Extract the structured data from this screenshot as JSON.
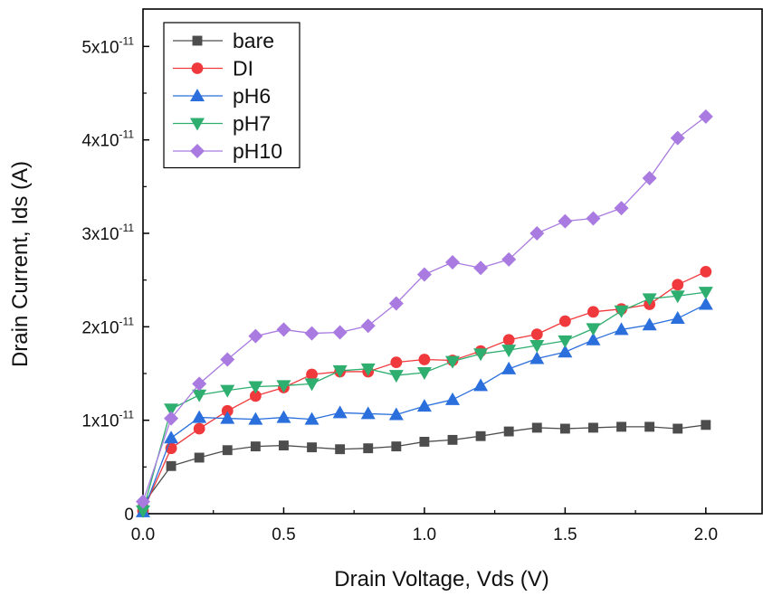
{
  "chart_data": {
    "type": "line",
    "xlabel": "Drain Voltage, Vds (V)",
    "ylabel": "Drain Current, Ids (A)",
    "xlim": [
      0,
      2.2
    ],
    "ylim": [
      0,
      5.4e-11
    ],
    "x_ticks": [
      0.0,
      0.5,
      1.0,
      1.5,
      2.0
    ],
    "x_tick_labels": [
      "0.0",
      "0.5",
      "1.0",
      "1.5",
      "2.0"
    ],
    "y_ticks": [
      0,
      1e-11,
      2e-11,
      3e-11,
      4e-11,
      5e-11
    ],
    "y_tick_labels": [
      {
        "mantissa": "0",
        "exponent": ""
      },
      {
        "mantissa": "1x10",
        "exponent": "-11"
      },
      {
        "mantissa": "2x10",
        "exponent": "-11"
      },
      {
        "mantissa": "3x10",
        "exponent": "-11"
      },
      {
        "mantissa": "4x10",
        "exponent": "-11"
      },
      {
        "mantissa": "5x10",
        "exponent": "-11"
      }
    ],
    "grid": false,
    "legend_position": "top-left",
    "x": [
      0.0,
      0.1,
      0.2,
      0.3,
      0.4,
      0.5,
      0.6,
      0.7,
      0.8,
      0.9,
      1.0,
      1.1,
      1.2,
      1.3,
      1.4,
      1.5,
      1.6,
      1.7,
      1.8,
      1.9,
      2.0
    ],
    "series": [
      {
        "name": "bare",
        "color": "#4d4d4d",
        "marker": "square",
        "values": [
          1e-12,
          5.1e-12,
          6e-12,
          6.8e-12,
          7.2e-12,
          7.3e-12,
          7.1e-12,
          6.9e-12,
          7e-12,
          7.2e-12,
          7.7e-12,
          7.9e-12,
          8.3e-12,
          8.8e-12,
          9.2e-12,
          9.1e-12,
          9.2e-12,
          9.3e-12,
          9.3e-12,
          9.1e-12,
          9.5e-12
        ]
      },
      {
        "name": "DI",
        "color": "#f0393c",
        "marker": "circle",
        "values": [
          3e-13,
          7e-12,
          9.1e-12,
          1.1e-11,
          1.26e-11,
          1.35e-11,
          1.49e-11,
          1.52e-11,
          1.52e-11,
          1.62e-11,
          1.65e-11,
          1.64e-11,
          1.74e-11,
          1.86e-11,
          1.92e-11,
          2.06e-11,
          2.16e-11,
          2.19e-11,
          2.24e-11,
          2.45e-11,
          2.59e-11
        ]
      },
      {
        "name": "pH6",
        "color": "#2a6fdc",
        "marker": "triangle-up",
        "values": [
          2e-13,
          8.1e-12,
          1.03e-11,
          1.02e-11,
          1.01e-11,
          1.03e-11,
          1.01e-11,
          1.08e-11,
          1.07e-11,
          1.06e-11,
          1.15e-11,
          1.22e-11,
          1.37e-11,
          1.55e-11,
          1.66e-11,
          1.73e-11,
          1.86e-11,
          1.97e-11,
          2.02e-11,
          2.09e-11,
          2.24e-11
        ]
      },
      {
        "name": "pH7",
        "color": "#2eae6f",
        "marker": "triangle-down",
        "values": [
          3e-13,
          1.12e-11,
          1.27e-11,
          1.32e-11,
          1.36e-11,
          1.37e-11,
          1.39e-11,
          1.53e-11,
          1.55e-11,
          1.48e-11,
          1.51e-11,
          1.63e-11,
          1.71e-11,
          1.75e-11,
          1.8e-11,
          1.85e-11,
          1.98e-11,
          2.17e-11,
          2.3e-11,
          2.33e-11,
          2.37e-11
        ]
      },
      {
        "name": "pH10",
        "color": "#a97ae0",
        "marker": "diamond",
        "values": [
          1.3e-12,
          1.02e-11,
          1.39e-11,
          1.65e-11,
          1.9e-11,
          1.97e-11,
          1.93e-11,
          1.94e-11,
          2.01e-11,
          2.25e-11,
          2.56e-11,
          2.69e-11,
          2.63e-11,
          2.72e-11,
          3e-11,
          3.13e-11,
          3.16e-11,
          3.27e-11,
          3.59e-11,
          4.02e-11,
          4.25e-11
        ]
      }
    ]
  }
}
